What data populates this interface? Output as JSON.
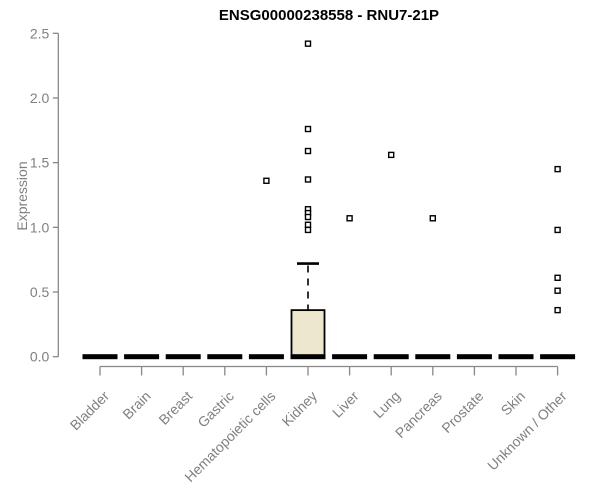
{
  "chart_data": {
    "type": "boxplot",
    "title": "ENSG00000238558 - RNU7-21P",
    "ylabel": "Expression",
    "xlabel": "",
    "ylim": [
      0,
      2.5
    ],
    "yticks": [
      0.0,
      0.5,
      1.0,
      1.5,
      2.0,
      2.5
    ],
    "ytick_labels": [
      "0.0",
      "0.5",
      "1.0",
      "1.5",
      "2.0",
      "2.5"
    ],
    "grid": false,
    "legend": "none",
    "colors": {
      "box_fill": "#ece7cd",
      "box_stroke": "#000000",
      "median_bar": "#000000",
      "axis": "#888888",
      "tick_label": "#808080",
      "title": "#000000",
      "outlier_stroke": "#000000",
      "outlier_fill": "#ffffff",
      "background": "#ffffff"
    },
    "categories": [
      "Bladder",
      "Brain",
      "Breast",
      "Gastric",
      "Hematopoietic cells",
      "Kidney",
      "Liver",
      "Lung",
      "Pancreas",
      "Prostate",
      "Skin",
      "Unknown / Other"
    ],
    "series": [
      {
        "category": "Bladder",
        "min": 0,
        "q1": 0,
        "median": 0,
        "q3": 0,
        "max": 0,
        "outliers": []
      },
      {
        "category": "Brain",
        "min": 0,
        "q1": 0,
        "median": 0,
        "q3": 0,
        "max": 0,
        "outliers": []
      },
      {
        "category": "Breast",
        "min": 0,
        "q1": 0,
        "median": 0,
        "q3": 0,
        "max": 0,
        "outliers": []
      },
      {
        "category": "Gastric",
        "min": 0,
        "q1": 0,
        "median": 0,
        "q3": 0,
        "max": 0,
        "outliers": []
      },
      {
        "category": "Hematopoietic cells",
        "min": 0,
        "q1": 0,
        "median": 0,
        "q3": 0,
        "max": 0,
        "outliers": [
          1.36
        ]
      },
      {
        "category": "Kidney",
        "min": 0,
        "q1": 0,
        "median": 0,
        "q3": 0.36,
        "max": 0.72,
        "outliers": [
          2.42,
          1.76,
          1.59,
          1.37,
          1.14,
          1.11,
          1.08,
          1.02,
          0.98
        ]
      },
      {
        "category": "Liver",
        "min": 0,
        "q1": 0,
        "median": 0,
        "q3": 0,
        "max": 0,
        "outliers": [
          1.07
        ]
      },
      {
        "category": "Lung",
        "min": 0,
        "q1": 0,
        "median": 0,
        "q3": 0,
        "max": 0,
        "outliers": [
          1.56
        ]
      },
      {
        "category": "Pancreas",
        "min": 0,
        "q1": 0,
        "median": 0,
        "q3": 0,
        "max": 0,
        "outliers": [
          1.07
        ]
      },
      {
        "category": "Prostate",
        "min": 0,
        "q1": 0,
        "median": 0,
        "q3": 0,
        "max": 0,
        "outliers": []
      },
      {
        "category": "Skin",
        "min": 0,
        "q1": 0,
        "median": 0,
        "q3": 0,
        "max": 0,
        "outliers": []
      },
      {
        "category": "Unknown / Other",
        "min": 0,
        "q1": 0,
        "median": 0,
        "q3": 0,
        "max": 0,
        "outliers": [
          1.45,
          0.98,
          0.61,
          0.51,
          0.36
        ]
      }
    ]
  }
}
